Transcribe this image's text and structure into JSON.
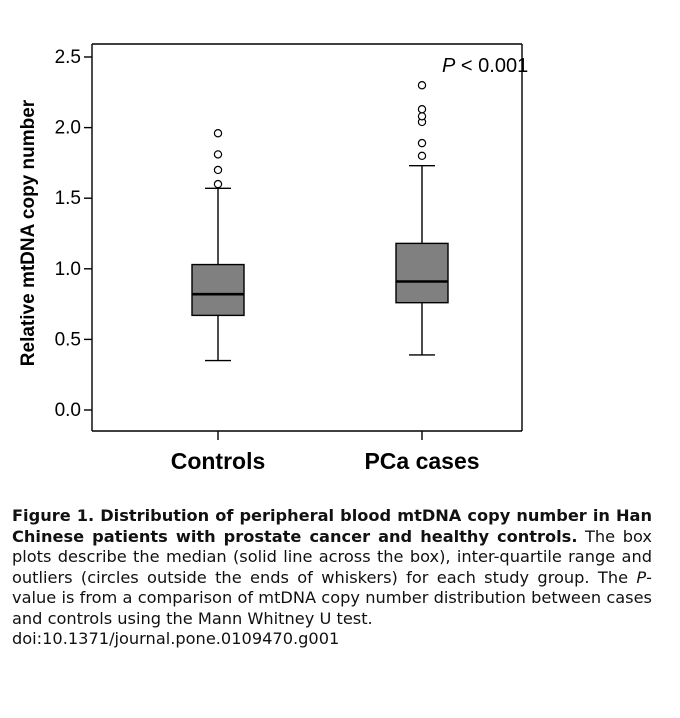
{
  "chart_data": {
    "type": "boxplot",
    "ylabel": "Relative mtDNA copy number",
    "ylim": [
      0.0,
      2.5
    ],
    "yticks": [
      "0.0",
      "0.5",
      "1.0",
      "1.5",
      "2.0",
      "2.5"
    ],
    "yticks_values": [
      0.0,
      0.5,
      1.0,
      1.5,
      2.0,
      2.5
    ],
    "grid": false,
    "annotation": {
      "prefix": "P",
      "suffix": " < 0.001"
    },
    "box_color": "#808080",
    "groups": [
      {
        "name": "Controls",
        "whisker_low": 0.35,
        "q1": 0.67,
        "median": 0.82,
        "q3": 1.03,
        "whisker_high": 1.57,
        "outliers": [
          1.6,
          1.7,
          1.81,
          1.96
        ]
      },
      {
        "name": "PCa cases",
        "whisker_low": 0.39,
        "q1": 0.76,
        "median": 0.91,
        "q3": 1.18,
        "whisker_high": 1.73,
        "outliers": [
          1.8,
          1.89,
          2.04,
          2.08,
          2.13,
          2.3
        ]
      }
    ]
  },
  "caption": {
    "title_bold": "Figure 1. Distribution of peripheral blood mtDNA copy number in Han Chinese patients with prostate cancer and healthy controls.",
    "text_part1": " The box plots describe the median (solid line across the box), inter-quartile range and outliers (circles outside the ends of whiskers) for each study group. The ",
    "p_italic": "P",
    "text_part2": "-value is from a comparison of mtDNA copy number distribution between cases and controls using the Mann Whitney U test.",
    "doi": "doi:10.1371/journal.pone.0109470.g001"
  }
}
